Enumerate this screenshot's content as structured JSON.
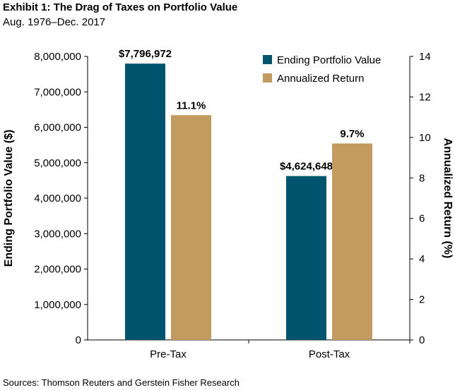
{
  "title": "Exhibit 1: The Drag of Taxes on Portfolio Value",
  "subtitle": "Aug. 1976–Dec. 2017",
  "source": "Sources: Thomson Reuters and Gerstein Fisher Research",
  "chart_data": {
    "type": "bar",
    "categories": [
      "Pre-Tax",
      "Post-Tax"
    ],
    "series": [
      {
        "name": "Ending Portfolio Value",
        "axis": "left",
        "color": "#00546e",
        "values": [
          7796972,
          4624648
        ],
        "labels": [
          "$7,796,972",
          "$4,624,648"
        ]
      },
      {
        "name": "Annualized Return",
        "axis": "right",
        "color": "#c19b5f",
        "values": [
          11.1,
          9.7
        ],
        "labels": [
          "11.1%",
          "9.7%"
        ]
      }
    ],
    "ylabel": "Ending Portfolio Value ($)",
    "y2label": "Annualized Return (%)",
    "ylim": [
      0,
      8000000
    ],
    "y2lim": [
      0,
      14
    ],
    "yticks": [
      "0",
      "1,000,000",
      "2,000,000",
      "3,000,000",
      "4,000,000",
      "5,000,000",
      "6,000,000",
      "7,000,000",
      "8,000,000"
    ],
    "y2ticks": [
      "0",
      "2",
      "4",
      "6",
      "8",
      "10",
      "12",
      "14"
    ],
    "legend": "top-right",
    "grid": false
  }
}
